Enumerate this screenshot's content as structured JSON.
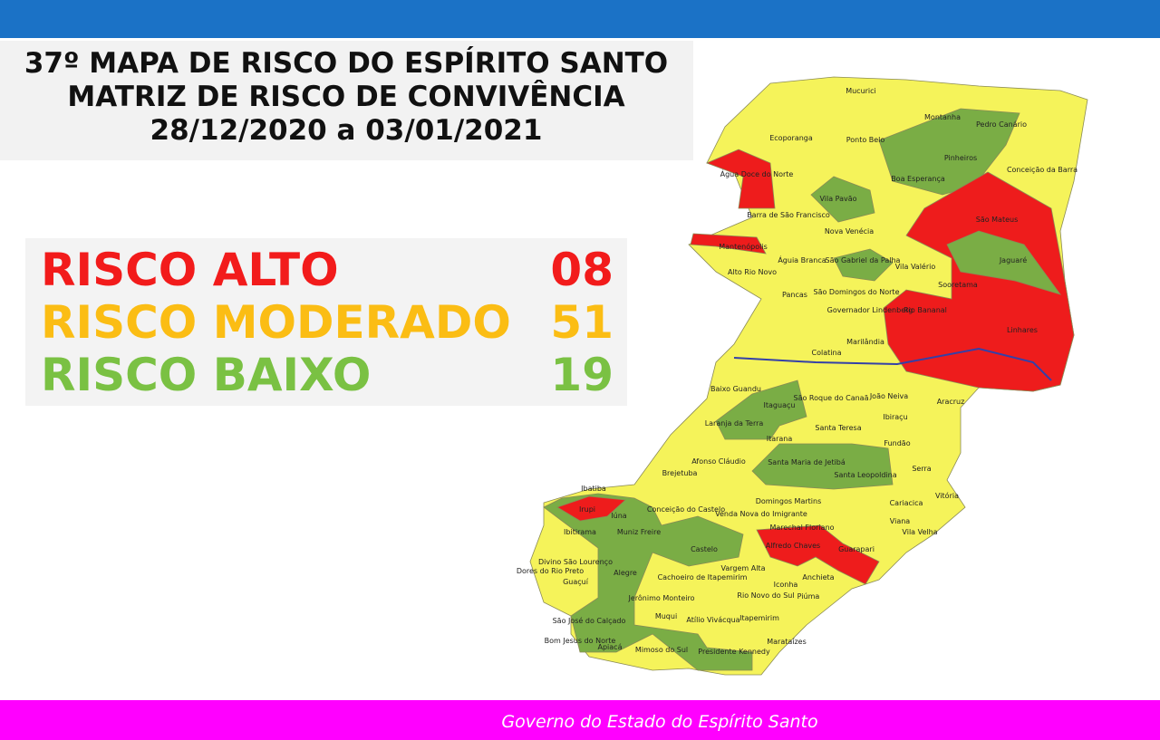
{
  "header": {
    "title_lines": [
      "37º MAPA DE RISCO DO ESPÍRITO SANTO",
      "MATRIZ DE RISCO DE CONVIVÊNCIA",
      "28/12/2020 a 03/01/2021"
    ]
  },
  "legend": [
    {
      "label": "RISCO ALTO",
      "count": "08",
      "color": "#f21b1b"
    },
    {
      "label": "RISCO MODERADO",
      "count": "51",
      "color": "#fbbd14"
    },
    {
      "label": "RISCO BAIXO",
      "count": "19",
      "color": "#7ac143"
    }
  ],
  "map": {
    "labels": [
      "Mucurici",
      "Montanha",
      "Pedro Canário",
      "Ecoporanga",
      "Ponto Belo",
      "Pinheiros",
      "Conceição da Barra",
      "Água Doce do Norte",
      "Boa Esperança",
      "Vila Pavão",
      "Barra de São Francisco",
      "São Mateus",
      "Nova Venécia",
      "Mantenópolis",
      "Águia Branca",
      "São Gabriel da Palha",
      "Vila Valério",
      "Jaguaré",
      "Alto Rio Novo",
      "Sooretama",
      "Pancas",
      "São Domingos do Norte",
      "Governador Lindenberg",
      "Rio Bananal",
      "Linhares",
      "Marilândia",
      "Colatina",
      "Baixo Guandu",
      "Itaguaçu",
      "São Roque do Canaã",
      "João Neiva",
      "Aracruz",
      "Ibiraçu",
      "Laranja da Terra",
      "Santa Teresa",
      "Itarana",
      "Fundão",
      "Afonso Cláudio",
      "Santa Maria de Jetibá",
      "Santa Leopoldina",
      "Serra",
      "Brejetuba",
      "Ibatiba",
      "Domingos Martins",
      "Vitória",
      "Cariacica",
      "Irupi",
      "Iúna",
      "Conceição do Castelo",
      "Venda Nova do Imigrante",
      "Viana",
      "Marechal Floriano",
      "Vila Velha",
      "Ibitirama",
      "Muniz Freire",
      "Alfredo Chaves",
      "Castelo",
      "Guarapari",
      "Divino São Lourenço",
      "Dores do Rio Preto",
      "Cachoeiro de Itapemirim",
      "Vargem Alta",
      "Anchieta",
      "Alegre",
      "Guaçuí",
      "Jerônimo Monteiro",
      "Rio Novo do Sul",
      "Iconha",
      "Piúma",
      "Muqui",
      "Atílio Vivácqua",
      "Itapemirim",
      "São José do Calçado",
      "Bom Jesus do Norte",
      "Apiacá",
      "Mimoso do Sul",
      "Presidente Kennedy",
      "Marataízes"
    ]
  },
  "footer": "Governo do Estado do Espírito Santo"
}
